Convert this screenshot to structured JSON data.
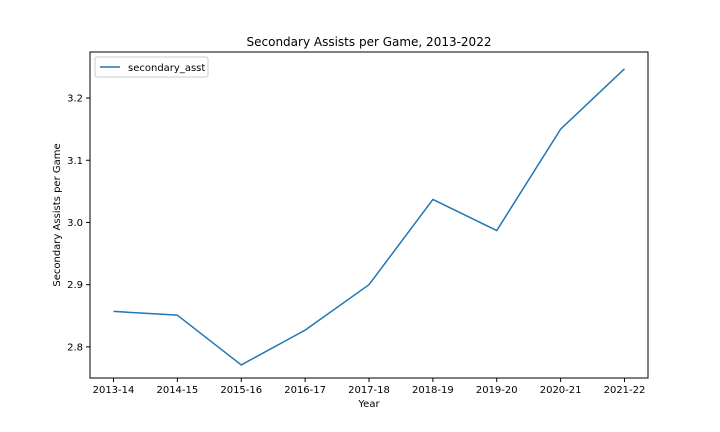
{
  "chart_data": {
    "type": "line",
    "title": "Secondary Assists per Game, 2013-2022",
    "xlabel": "Year",
    "ylabel": "Secondary Assists per Game",
    "categories": [
      "2013-14",
      "2014-15",
      "2015-16",
      "2016-17",
      "2017-18",
      "2018-19",
      "2019-20",
      "2020-21",
      "2021-22"
    ],
    "series": [
      {
        "name": "secondary_asst",
        "color": "#1f77b4",
        "values": [
          2.857,
          2.851,
          2.771,
          2.827,
          2.9,
          3.037,
          2.987,
          3.15,
          3.247
        ]
      }
    ],
    "ylim": [
      2.75,
      3.274
    ],
    "yticks": [
      2.8,
      2.9,
      3.0,
      3.1,
      3.2
    ],
    "ytick_labels": [
      "2.8",
      "2.9",
      "3.0",
      "3.1",
      "3.2"
    ],
    "grid": false,
    "legend_position": "top-left"
  }
}
